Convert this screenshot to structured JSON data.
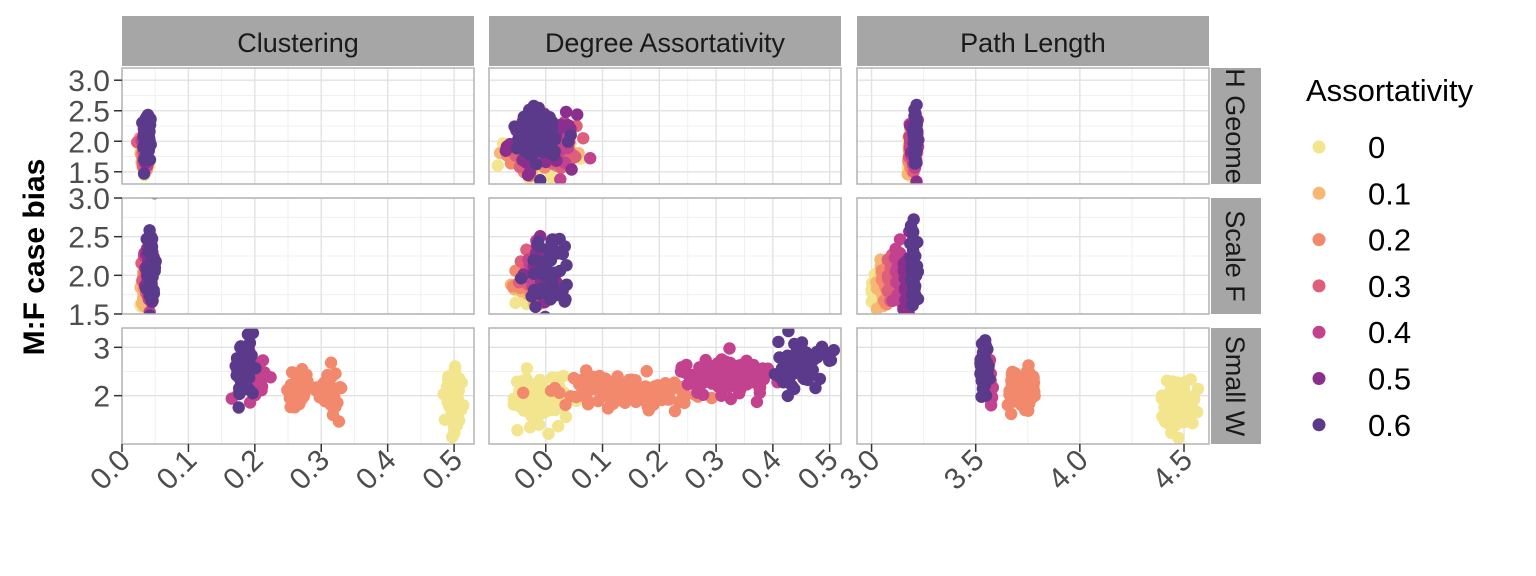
{
  "chart_data": {
    "type": "scatter",
    "ylabel": "M:F case bias",
    "legend": {
      "title": "Assortativity",
      "placement": "right",
      "levels": [
        "0",
        "0.1",
        "0.2",
        "0.3",
        "0.4",
        "0.5",
        "0.6"
      ],
      "colors": [
        "#f2e58e",
        "#f5b773",
        "#f2896c",
        "#de5f7b",
        "#c2428f",
        "#8b2f8f",
        "#5b3a8c"
      ]
    },
    "columns": [
      {
        "label": "Clustering",
        "xlim": [
          0,
          0.53
        ],
        "ticks": [
          0,
          0.1,
          0.2,
          0.3,
          0.4,
          0.5
        ],
        "tick_labels": [
          "0.0",
          "0.1",
          "0.2",
          "0.3",
          "0.4",
          "0.5"
        ]
      },
      {
        "label": "Degree Assortativity",
        "xlim": [
          -0.1,
          0.52
        ],
        "ticks": [
          0,
          0.1,
          0.2,
          0.3,
          0.4,
          0.5
        ],
        "tick_labels": [
          "0.0",
          "0.1",
          "0.2",
          "0.3",
          "0.4",
          "0.5"
        ]
      },
      {
        "label": "Path Length",
        "xlim": [
          2.93,
          4.62
        ],
        "ticks": [
          3,
          3.5,
          4,
          4.5
        ],
        "tick_labels": [
          "3.0",
          "3.5",
          "4.0",
          "4.5"
        ]
      }
    ],
    "rows": [
      {
        "label": "Random Geometric",
        "visible_label": "H Geome",
        "ylim": [
          1.3,
          3.2
        ],
        "ticks": [
          1.5,
          2.0,
          2.5,
          3.0
        ],
        "tick_labels": [
          "1.5",
          "2.0",
          "2.5",
          "3.0"
        ]
      },
      {
        "label": "Scale Free",
        "visible_label": "Scale F",
        "ylim": [
          1.5,
          3.0
        ],
        "ticks": [
          1.5,
          2.0,
          2.5,
          3.0
        ],
        "tick_labels": [
          "1.5",
          "2.0",
          "2.5",
          "3.0"
        ]
      },
      {
        "label": "Small World",
        "visible_label": "Small W",
        "ylim": [
          1.0,
          3.4
        ],
        "ticks": [
          2,
          3
        ],
        "tick_labels": [
          "2",
          "3"
        ]
      }
    ],
    "clusters": [
      {
        "row": 0,
        "col": 0,
        "level": 0,
        "x": 0.033,
        "y": 1.75,
        "sx": 0.003,
        "sy": 0.18,
        "n": 30
      },
      {
        "row": 0,
        "col": 0,
        "level": 1,
        "x": 0.034,
        "y": 1.8,
        "sx": 0.003,
        "sy": 0.18,
        "n": 30
      },
      {
        "row": 0,
        "col": 0,
        "level": 2,
        "x": 0.035,
        "y": 1.85,
        "sx": 0.003,
        "sy": 0.18,
        "n": 30
      },
      {
        "row": 0,
        "col": 0,
        "level": 3,
        "x": 0.035,
        "y": 1.9,
        "sx": 0.003,
        "sy": 0.18,
        "n": 30
      },
      {
        "row": 0,
        "col": 0,
        "level": 4,
        "x": 0.036,
        "y": 1.95,
        "sx": 0.003,
        "sy": 0.2,
        "n": 30
      },
      {
        "row": 0,
        "col": 0,
        "level": 5,
        "x": 0.037,
        "y": 2.0,
        "sx": 0.003,
        "sy": 0.22,
        "n": 30
      },
      {
        "row": 0,
        "col": 0,
        "level": 6,
        "x": 0.038,
        "y": 2.05,
        "sx": 0.003,
        "sy": 0.25,
        "n": 40
      },
      {
        "row": 0,
        "col": 1,
        "level": 0,
        "x": -0.01,
        "y": 1.75,
        "sx": 0.03,
        "sy": 0.18,
        "n": 40
      },
      {
        "row": 0,
        "col": 1,
        "level": 1,
        "x": -0.005,
        "y": 1.8,
        "sx": 0.03,
        "sy": 0.18,
        "n": 40
      },
      {
        "row": 0,
        "col": 1,
        "level": 2,
        "x": -0.005,
        "y": 1.85,
        "sx": 0.03,
        "sy": 0.18,
        "n": 40
      },
      {
        "row": 0,
        "col": 1,
        "level": 3,
        "x": 0.0,
        "y": 1.9,
        "sx": 0.028,
        "sy": 0.18,
        "n": 40
      },
      {
        "row": 0,
        "col": 1,
        "level": 4,
        "x": 0.0,
        "y": 1.95,
        "sx": 0.028,
        "sy": 0.2,
        "n": 40
      },
      {
        "row": 0,
        "col": 1,
        "level": 5,
        "x": -0.005,
        "y": 2.0,
        "sx": 0.028,
        "sy": 0.22,
        "n": 40
      },
      {
        "row": 0,
        "col": 1,
        "level": 6,
        "x": -0.01,
        "y": 2.05,
        "sx": 0.028,
        "sy": 0.25,
        "n": 55
      },
      {
        "row": 0,
        "col": 2,
        "level": 0,
        "x": 3.19,
        "y": 1.75,
        "sx": 0.008,
        "sy": 0.18,
        "n": 30
      },
      {
        "row": 0,
        "col": 2,
        "level": 1,
        "x": 3.19,
        "y": 1.8,
        "sx": 0.008,
        "sy": 0.18,
        "n": 30
      },
      {
        "row": 0,
        "col": 2,
        "level": 2,
        "x": 3.195,
        "y": 1.85,
        "sx": 0.008,
        "sy": 0.18,
        "n": 30
      },
      {
        "row": 0,
        "col": 2,
        "level": 3,
        "x": 3.2,
        "y": 1.9,
        "sx": 0.008,
        "sy": 0.18,
        "n": 30
      },
      {
        "row": 0,
        "col": 2,
        "level": 4,
        "x": 3.2,
        "y": 1.95,
        "sx": 0.008,
        "sy": 0.2,
        "n": 30
      },
      {
        "row": 0,
        "col": 2,
        "level": 5,
        "x": 3.205,
        "y": 2.0,
        "sx": 0.008,
        "sy": 0.22,
        "n": 30
      },
      {
        "row": 0,
        "col": 2,
        "level": 6,
        "x": 3.21,
        "y": 2.05,
        "sx": 0.008,
        "sy": 0.25,
        "n": 40
      },
      {
        "row": 1,
        "col": 0,
        "level": 0,
        "x": 0.034,
        "y": 1.85,
        "sx": 0.003,
        "sy": 0.12,
        "n": 25
      },
      {
        "row": 1,
        "col": 0,
        "level": 1,
        "x": 0.035,
        "y": 1.9,
        "sx": 0.003,
        "sy": 0.12,
        "n": 25
      },
      {
        "row": 1,
        "col": 0,
        "level": 2,
        "x": 0.036,
        "y": 1.95,
        "sx": 0.003,
        "sy": 0.14,
        "n": 25
      },
      {
        "row": 1,
        "col": 0,
        "level": 3,
        "x": 0.037,
        "y": 2.0,
        "sx": 0.003,
        "sy": 0.16,
        "n": 25
      },
      {
        "row": 1,
        "col": 0,
        "level": 4,
        "x": 0.039,
        "y": 2.05,
        "sx": 0.003,
        "sy": 0.2,
        "n": 25
      },
      {
        "row": 1,
        "col": 0,
        "level": 5,
        "x": 0.041,
        "y": 2.1,
        "sx": 0.003,
        "sy": 0.22,
        "n": 25
      },
      {
        "row": 1,
        "col": 0,
        "level": 6,
        "x": 0.044,
        "y": 2.1,
        "sx": 0.003,
        "sy": 0.28,
        "n": 45
      },
      {
        "row": 1,
        "col": 1,
        "level": 0,
        "x": -0.035,
        "y": 1.8,
        "sx": 0.01,
        "sy": 0.1,
        "n": 25
      },
      {
        "row": 1,
        "col": 1,
        "level": 1,
        "x": -0.03,
        "y": 1.85,
        "sx": 0.01,
        "sy": 0.12,
        "n": 25
      },
      {
        "row": 1,
        "col": 1,
        "level": 2,
        "x": -0.025,
        "y": 1.9,
        "sx": 0.012,
        "sy": 0.14,
        "n": 25
      },
      {
        "row": 1,
        "col": 1,
        "level": 3,
        "x": -0.02,
        "y": 2.0,
        "sx": 0.012,
        "sy": 0.16,
        "n": 25
      },
      {
        "row": 1,
        "col": 1,
        "level": 4,
        "x": -0.01,
        "y": 2.05,
        "sx": 0.014,
        "sy": 0.2,
        "n": 25
      },
      {
        "row": 1,
        "col": 1,
        "level": 5,
        "x": 0.0,
        "y": 2.05,
        "sx": 0.016,
        "sy": 0.22,
        "n": 25
      },
      {
        "row": 1,
        "col": 1,
        "level": 6,
        "x": 0.01,
        "y": 2.0,
        "sx": 0.02,
        "sy": 0.28,
        "n": 50
      },
      {
        "row": 1,
        "col": 2,
        "level": 0,
        "x": 3.02,
        "y": 1.85,
        "sx": 0.012,
        "sy": 0.14,
        "n": 30
      },
      {
        "row": 1,
        "col": 2,
        "level": 1,
        "x": 3.05,
        "y": 1.9,
        "sx": 0.012,
        "sy": 0.14,
        "n": 30
      },
      {
        "row": 1,
        "col": 2,
        "level": 2,
        "x": 3.07,
        "y": 1.95,
        "sx": 0.012,
        "sy": 0.14,
        "n": 30
      },
      {
        "row": 1,
        "col": 2,
        "level": 3,
        "x": 3.1,
        "y": 2.0,
        "sx": 0.012,
        "sy": 0.16,
        "n": 30
      },
      {
        "row": 1,
        "col": 2,
        "level": 4,
        "x": 3.14,
        "y": 2.05,
        "sx": 0.012,
        "sy": 0.18,
        "n": 30
      },
      {
        "row": 1,
        "col": 2,
        "level": 5,
        "x": 3.17,
        "y": 2.05,
        "sx": 0.01,
        "sy": 0.2,
        "n": 30
      },
      {
        "row": 1,
        "col": 2,
        "level": 6,
        "x": 3.2,
        "y": 2.05,
        "sx": 0.01,
        "sy": 0.28,
        "n": 45
      },
      {
        "row": 2,
        "col": 0,
        "level": 0,
        "x": 0.5,
        "y": 1.85,
        "sx": 0.007,
        "sy": 0.3,
        "n": 60
      },
      {
        "row": 2,
        "col": 0,
        "level": 2,
        "x": 0.265,
        "y": 2.15,
        "sx": 0.008,
        "sy": 0.22,
        "n": 45
      },
      {
        "row": 2,
        "col": 0,
        "level": 2,
        "x": 0.31,
        "y": 2.1,
        "sx": 0.008,
        "sy": 0.22,
        "n": 45
      },
      {
        "row": 2,
        "col": 0,
        "level": 4,
        "x": 0.195,
        "y": 2.4,
        "sx": 0.01,
        "sy": 0.25,
        "n": 40
      },
      {
        "row": 2,
        "col": 0,
        "level": 6,
        "x": 0.185,
        "y": 2.55,
        "sx": 0.008,
        "sy": 0.3,
        "n": 55
      },
      {
        "row": 2,
        "col": 1,
        "level": 0,
        "x": -0.01,
        "y": 1.9,
        "sx": 0.025,
        "sy": 0.28,
        "n": 70
      },
      {
        "row": 2,
        "col": 1,
        "level": 2,
        "x": 0.14,
        "y": 2.1,
        "sx": 0.06,
        "sy": 0.17,
        "n": 110
      },
      {
        "row": 2,
        "col": 1,
        "level": 4,
        "x": 0.32,
        "y": 2.4,
        "sx": 0.04,
        "sy": 0.2,
        "n": 110
      },
      {
        "row": 2,
        "col": 1,
        "level": 6,
        "x": 0.45,
        "y": 2.65,
        "sx": 0.02,
        "sy": 0.25,
        "n": 80
      },
      {
        "row": 2,
        "col": 2,
        "level": 0,
        "x": 4.47,
        "y": 1.85,
        "sx": 0.04,
        "sy": 0.25,
        "n": 90
      },
      {
        "row": 2,
        "col": 2,
        "level": 2,
        "x": 3.68,
        "y": 2.15,
        "sx": 0.015,
        "sy": 0.2,
        "n": 45
      },
      {
        "row": 2,
        "col": 2,
        "level": 2,
        "x": 3.76,
        "y": 2.15,
        "sx": 0.015,
        "sy": 0.2,
        "n": 45
      },
      {
        "row": 2,
        "col": 2,
        "level": 4,
        "x": 3.56,
        "y": 2.45,
        "sx": 0.012,
        "sy": 0.25,
        "n": 40
      },
      {
        "row": 2,
        "col": 2,
        "level": 6,
        "x": 3.54,
        "y": 2.6,
        "sx": 0.01,
        "sy": 0.3,
        "n": 55
      }
    ]
  }
}
